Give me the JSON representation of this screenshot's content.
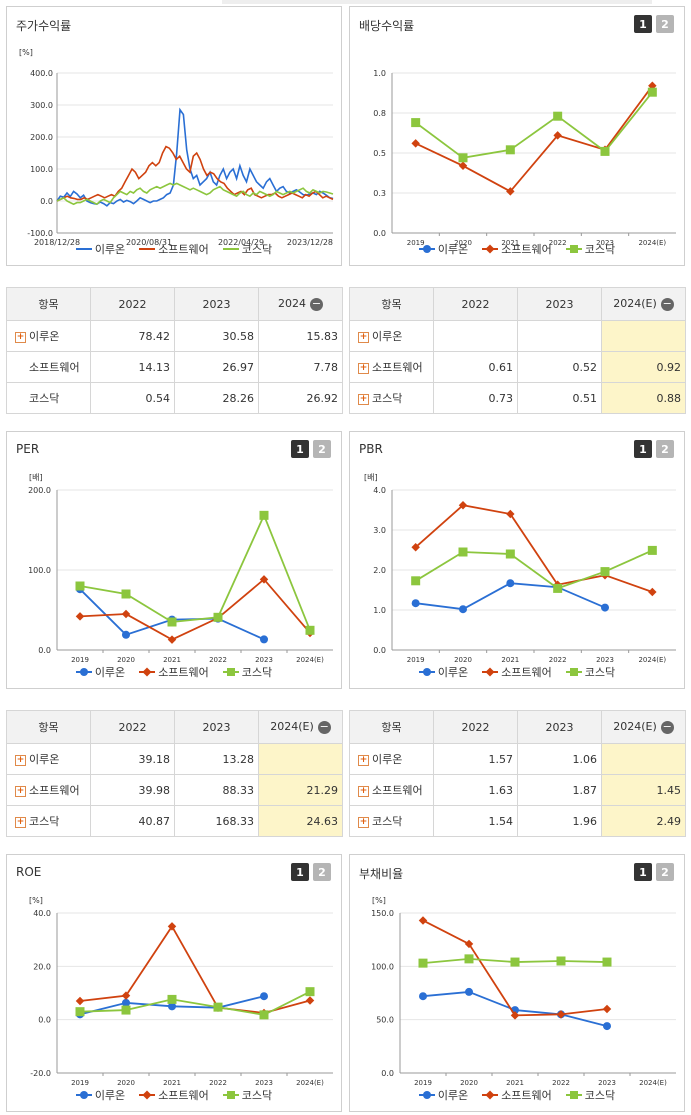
{
  "colors": {
    "c1": "#2a6fd4",
    "c2": "#d0420f",
    "c3": "#8cc63e",
    "grid": "#e6e6e6",
    "axis": "#999999"
  },
  "pages": {
    "one": "1",
    "two": "2"
  },
  "legend": [
    "이루온",
    "소프트웨어",
    "코스닥"
  ],
  "stock": {
    "title": "주가수익률",
    "chart_data": {
      "type": "line",
      "unit": "[%]",
      "ylim": [
        -100,
        400
      ],
      "yticks": [
        "400.0",
        "300.0",
        "200.0",
        "100.0",
        "0.0",
        "-100.0"
      ],
      "xticks": [
        "2018/12/28",
        "2020/08/31",
        "2022/04/29",
        "2023/12/28"
      ],
      "series": [
        {
          "name": "이루온",
          "values": [
            0,
            15,
            12,
            25,
            14,
            30,
            22,
            10,
            18,
            0,
            -5,
            -8,
            -10,
            -3,
            -8,
            -15,
            -5,
            -8,
            0,
            5,
            -3,
            2,
            -2,
            -8,
            0,
            10,
            5,
            0,
            -5,
            0,
            0,
            5,
            10,
            20,
            25,
            50,
            150,
            285,
            270,
            160,
            100,
            70,
            80,
            50,
            60,
            70,
            90,
            60,
            50,
            80,
            100,
            70,
            90,
            100,
            70,
            110,
            80,
            60,
            100,
            80,
            60,
            50,
            40,
            60,
            70,
            50,
            30,
            40,
            45,
            30,
            25,
            30,
            35,
            28,
            20,
            18,
            22,
            25,
            20,
            30,
            25,
            18,
            10,
            8
          ]
        },
        {
          "name": "소프트웨어",
          "values": [
            0,
            5,
            10,
            15,
            10,
            8,
            5,
            5,
            10,
            5,
            10,
            15,
            20,
            15,
            10,
            15,
            20,
            15,
            30,
            40,
            60,
            80,
            100,
            90,
            70,
            80,
            90,
            110,
            120,
            110,
            120,
            150,
            170,
            165,
            150,
            130,
            140,
            120,
            100,
            90,
            140,
            150,
            130,
            100,
            80,
            90,
            85,
            70,
            60,
            55,
            40,
            30,
            20,
            25,
            30,
            20,
            35,
            40,
            20,
            15,
            10,
            15,
            20,
            20,
            25,
            15,
            10,
            15,
            20,
            25,
            20,
            15,
            10,
            20,
            15,
            25,
            30,
            20,
            10,
            15,
            10,
            5
          ]
        },
        {
          "name": "코스닥",
          "values": [
            0,
            5,
            10,
            0,
            -5,
            -10,
            -5,
            -5,
            0,
            5,
            0,
            -5,
            -10,
            0,
            5,
            0,
            -5,
            10,
            20,
            30,
            25,
            20,
            30,
            25,
            35,
            40,
            30,
            25,
            35,
            40,
            45,
            40,
            45,
            50,
            55,
            50,
            55,
            50,
            45,
            40,
            35,
            40,
            35,
            30,
            25,
            20,
            25,
            35,
            40,
            45,
            35,
            30,
            25,
            20,
            15,
            25,
            30,
            20,
            15,
            25,
            20,
            30,
            25,
            20,
            15,
            20,
            30,
            25,
            20,
            25,
            30,
            25,
            30,
            35,
            40,
            30,
            25,
            35,
            30,
            25,
            30,
            28,
            25,
            22
          ]
        }
      ]
    }
  },
  "dividend": {
    "title": "배당수익률",
    "chart_data": {
      "type": "line",
      "ylim": [
        0,
        1.0
      ],
      "yticks": [
        "1.0",
        "0.8",
        "0.5",
        "0.3",
        "0.0"
      ],
      "categories": [
        "2019",
        "2020",
        "2021",
        "2022",
        "2023",
        "2024(E)"
      ],
      "series": [
        {
          "name": "소프트웨어",
          "values": [
            0.56,
            0.42,
            0.26,
            0.61,
            0.52,
            0.92
          ]
        },
        {
          "name": "코스닥",
          "values": [
            0.69,
            0.47,
            0.52,
            0.73,
            0.51,
            0.88
          ]
        }
      ]
    }
  },
  "table_stock": {
    "headers": [
      "항목",
      "2022",
      "2023",
      "2024"
    ],
    "rows": [
      {
        "label": "이루온",
        "plus": true,
        "vals": [
          "78.42",
          "30.58",
          "15.83"
        ]
      },
      {
        "label": "소프트웨어",
        "plus": false,
        "vals": [
          "14.13",
          "26.97",
          "7.78"
        ]
      },
      {
        "label": "코스닥",
        "plus": false,
        "vals": [
          "0.54",
          "28.26",
          "26.92"
        ]
      }
    ]
  },
  "table_div": {
    "headers": [
      "항목",
      "2022",
      "2023",
      "2024(E)"
    ],
    "rows": [
      {
        "label": "이루온",
        "plus": true,
        "vals": [
          "",
          "",
          ""
        ]
      },
      {
        "label": "소프트웨어",
        "plus": true,
        "vals": [
          "0.61",
          "0.52",
          "0.92"
        ]
      },
      {
        "label": "코스닥",
        "plus": true,
        "vals": [
          "0.73",
          "0.51",
          "0.88"
        ]
      }
    ]
  },
  "per": {
    "title": "PER",
    "chart_data": {
      "type": "line",
      "unit": "[배]",
      "ylim": [
        0,
        200
      ],
      "yticks": [
        "200.0",
        "100.0",
        "0.0"
      ],
      "categories": [
        "2019",
        "2020",
        "2021",
        "2022",
        "2023",
        "2024(E)"
      ],
      "series": [
        {
          "name": "이루온",
          "values": [
            76,
            19,
            38,
            39.18,
            13.28,
            null
          ]
        },
        {
          "name": "소프트웨어",
          "values": [
            42,
            45,
            13,
            39.98,
            88.33,
            21.29
          ]
        },
        {
          "name": "코스닥",
          "values": [
            80,
            70,
            35,
            40.87,
            168.33,
            24.63
          ]
        }
      ]
    }
  },
  "pbr": {
    "title": "PBR",
    "chart_data": {
      "type": "line",
      "unit": "[배]",
      "ylim": [
        0,
        4
      ],
      "yticks": [
        "4.0",
        "3.0",
        "2.0",
        "1.0",
        "0.0"
      ],
      "categories": [
        "2019",
        "2020",
        "2021",
        "2022",
        "2023",
        "2024(E)"
      ],
      "series": [
        {
          "name": "이루온",
          "values": [
            1.17,
            1.02,
            1.67,
            1.57,
            1.06,
            null
          ]
        },
        {
          "name": "소프트웨어",
          "values": [
            2.57,
            3.62,
            3.4,
            1.63,
            1.87,
            1.45
          ]
        },
        {
          "name": "코스닥",
          "values": [
            1.73,
            2.45,
            2.4,
            1.54,
            1.96,
            2.49
          ]
        }
      ]
    }
  },
  "table_per": {
    "headers": [
      "항목",
      "2022",
      "2023",
      "2024(E)"
    ],
    "rows": [
      {
        "label": "이루온",
        "plus": true,
        "vals": [
          "39.18",
          "13.28",
          ""
        ]
      },
      {
        "label": "소프트웨어",
        "plus": true,
        "vals": [
          "39.98",
          "88.33",
          "21.29"
        ]
      },
      {
        "label": "코스닥",
        "plus": true,
        "vals": [
          "40.87",
          "168.33",
          "24.63"
        ]
      }
    ]
  },
  "table_pbr": {
    "headers": [
      "항목",
      "2022",
      "2023",
      "2024(E)"
    ],
    "rows": [
      {
        "label": "이루온",
        "plus": true,
        "vals": [
          "1.57",
          "1.06",
          ""
        ]
      },
      {
        "label": "소프트웨어",
        "plus": true,
        "vals": [
          "1.63",
          "1.87",
          "1.45"
        ]
      },
      {
        "label": "코스닥",
        "plus": true,
        "vals": [
          "1.54",
          "1.96",
          "2.49"
        ]
      }
    ]
  },
  "roe": {
    "title": "ROE",
    "chart_data": {
      "type": "line",
      "unit": "[%]",
      "ylim": [
        -20,
        40
      ],
      "yticks": [
        "40.0",
        "20.0",
        "0.0",
        "-20.0"
      ],
      "categories": [
        "2019",
        "2020",
        "2021",
        "2022",
        "2023",
        "2024(E)"
      ],
      "series": [
        {
          "name": "이루온",
          "values": [
            2,
            6.3,
            5,
            4.5,
            8.8,
            null
          ]
        },
        {
          "name": "소프트웨어",
          "values": [
            7,
            9,
            35,
            4.5,
            2.5,
            7.2
          ]
        },
        {
          "name": "코스닥",
          "values": [
            3,
            3.6,
            7.6,
            4.7,
            1.8,
            10.5
          ]
        }
      ]
    }
  },
  "debt": {
    "title": "부채비율",
    "chart_data": {
      "type": "line",
      "unit": "[%]",
      "ylim": [
        0,
        150
      ],
      "yticks": [
        "150.0",
        "100.0",
        "50.0",
        "0.0"
      ],
      "categories": [
        "2019",
        "2020",
        "2021",
        "2022",
        "2023",
        "2024(E)"
      ],
      "series": [
        {
          "name": "이루온",
          "values": [
            72,
            76,
            59,
            55,
            44,
            null
          ]
        },
        {
          "name": "소프트웨어",
          "values": [
            143,
            121,
            54,
            55,
            60,
            null
          ]
        },
        {
          "name": "코스닥",
          "values": [
            103,
            107,
            104,
            105,
            104,
            null
          ]
        }
      ]
    }
  }
}
